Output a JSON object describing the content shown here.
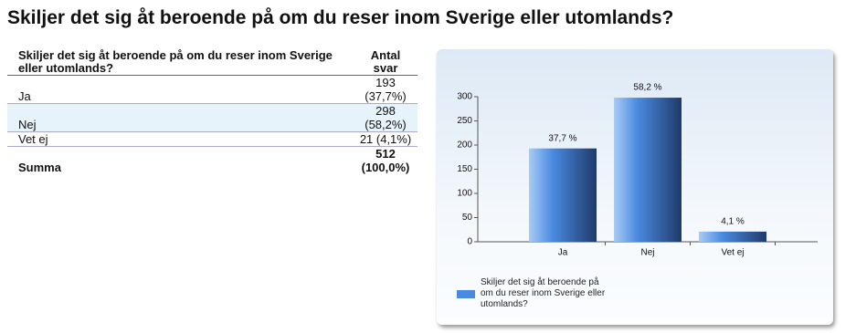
{
  "title": "Skiljer det sig åt beroende på om du reser inom Sverige eller utomlands?",
  "table": {
    "header": [
      "Skiljer det sig åt beroende på om du reser inom Sverige eller utomlands?",
      "Antal svar"
    ],
    "rows": [
      [
        "Ja",
        "193 (37,7%)"
      ],
      [
        "Nej",
        "298 (58,2%)"
      ],
      [
        "Vet ej",
        "21 (4,1%)"
      ],
      [
        "Summa",
        "512 (100,0%)"
      ]
    ]
  },
  "chart_data": {
    "type": "bar",
    "categories": [
      "Ja",
      "Nej",
      "Vet ej"
    ],
    "series": [
      {
        "name": "Skiljer det sig åt beroende på om du reser inom Sverige eller utomlands?",
        "color": "#4a8ae0",
        "values": [
          193,
          298,
          21
        ]
      }
    ],
    "bar_labels": [
      "37,7 %",
      "58,2 %",
      "4,1 %"
    ],
    "ylim": [
      0,
      300
    ],
    "yticks": [
      0,
      50,
      100,
      150,
      200,
      250,
      300
    ]
  }
}
